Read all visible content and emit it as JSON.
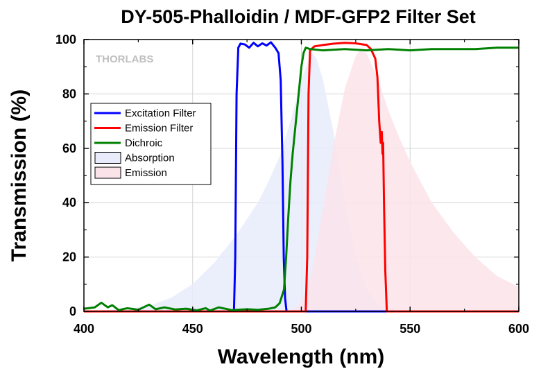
{
  "chart_data": {
    "type": "line",
    "title": "DY-505-Phalloidin / MDF-GFP2 Filter Set",
    "xlabel": "Wavelength (nm)",
    "ylabel": "Transmission (%)",
    "xlim": [
      400,
      600
    ],
    "ylim": [
      0,
      100
    ],
    "xticks": [
      400,
      450,
      500,
      550,
      600
    ],
    "yticks": [
      0,
      20,
      40,
      60,
      80,
      100
    ],
    "grid": true,
    "legend_position": "middle-left",
    "watermark": "THORLABS",
    "series": [
      {
        "name": "Excitation Filter",
        "kind": "line",
        "color": "#0000ff",
        "x": [
          400,
          469,
          469.6,
          470.2,
          471,
          472,
          474,
          476,
          478,
          480,
          482,
          484,
          486,
          488,
          489.5,
          490.5,
          491.3,
          491.9,
          492.5,
          493.2,
          600
        ],
        "y": [
          0,
          0,
          20,
          80,
          97,
          98.5,
          98.2,
          97,
          98.8,
          97.5,
          98.6,
          97.8,
          99,
          97,
          95,
          85,
          55,
          20,
          5,
          0,
          0
        ]
      },
      {
        "name": "Emission Filter",
        "kind": "line",
        "color": "#ff0000",
        "x": [
          400,
          502,
          502.7,
          503.3,
          504,
          506,
          510,
          515,
          520,
          525,
          530,
          532,
          534,
          535,
          535.8,
          536.5,
          537,
          537.3,
          537.6,
          538,
          538.6,
          539.3,
          600
        ],
        "y": [
          0,
          0,
          20,
          80,
          96,
          97.5,
          98,
          98.5,
          98.8,
          98.6,
          98,
          96.5,
          93,
          86,
          70,
          62,
          66,
          58,
          62,
          40,
          15,
          0,
          0
        ]
      },
      {
        "name": "Dichroic",
        "kind": "line",
        "color": "#008000",
        "x": [
          400,
          405,
          408,
          411,
          413,
          416,
          420,
          425,
          430,
          433,
          437,
          442,
          447,
          452,
          456,
          458,
          462,
          468,
          475,
          480,
          485,
          488,
          490,
          492,
          493,
          494,
          495,
          496,
          497,
          498,
          499,
          500,
          501,
          502,
          504,
          510,
          520,
          530,
          540,
          550,
          560,
          570,
          580,
          590,
          600
        ],
        "y": [
          1,
          1.5,
          3.2,
          1.5,
          2.3,
          0.5,
          1.2,
          0.6,
          2.5,
          0.8,
          1.5,
          0.7,
          1,
          0.4,
          1.2,
          0.3,
          1.5,
          0.5,
          0.8,
          0.6,
          1,
          1.5,
          3,
          8,
          20,
          35,
          48,
          58,
          66,
          74,
          82,
          90,
          95,
          97,
          96.5,
          96,
          96.5,
          96,
          96.5,
          96,
          96.5,
          96.5,
          96.5,
          97,
          97
        ]
      },
      {
        "name": "Absorption",
        "kind": "area",
        "color": "#e8ecfa",
        "x": [
          400,
          420,
          430,
          440,
          450,
          460,
          470,
          480,
          485,
          490,
          495,
          500,
          503,
          505,
          507,
          510,
          515,
          520,
          525,
          530,
          535,
          540
        ],
        "y": [
          0,
          1,
          2,
          5,
          10,
          18,
          28,
          40,
          48,
          57,
          70,
          85,
          92,
          95,
          93,
          85,
          65,
          40,
          20,
          8,
          3,
          0
        ]
      },
      {
        "name": "Emission",
        "kind": "area",
        "color": "#fbe3ea",
        "x": [
          495,
          500,
          505,
          510,
          515,
          520,
          525,
          527,
          530,
          535,
          540,
          545,
          550,
          560,
          570,
          580,
          590,
          600
        ],
        "y": [
          0,
          3,
          15,
          38,
          62,
          82,
          94,
          96,
          95,
          86,
          74,
          64,
          55,
          40,
          29,
          20,
          13,
          9
        ]
      }
    ]
  }
}
